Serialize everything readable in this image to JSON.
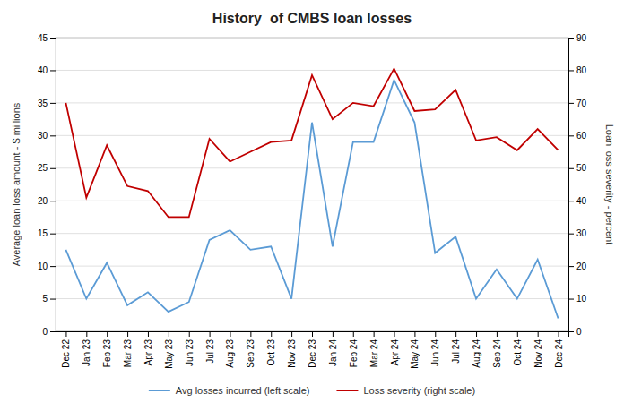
{
  "chart_data": {
    "type": "line",
    "title": "History  of CMBS loan losses",
    "ylabel": "Average loan loss amount - $ millions",
    "y2label": "Loan loss severity - percent",
    "categories": [
      "Dec 22",
      "Jan 23",
      "Feb 23",
      "Mar 23",
      "Apr 23",
      "May 23",
      "Jun 23",
      "Jul 23",
      "Aug 23",
      "Sep 23",
      "Oct 23",
      "Nov 23",
      "Dec 23",
      "Jan 24",
      "Feb 24",
      "Mar 24",
      "Apr 24",
      "May 24",
      "Jun 24",
      "Jul 24",
      "Aug 24",
      "Sep 24",
      "Oct 24",
      "Nov 24",
      "Dec 24"
    ],
    "series": [
      {
        "name": "Avg losses incurred (left scale)",
        "color": "#5b9bd5",
        "values": [
          12.5,
          5.0,
          10.5,
          4.0,
          6.0,
          3.0,
          4.5,
          14.0,
          15.5,
          12.5,
          13.0,
          5.0,
          32.0,
          13.0,
          29.0,
          29.0,
          38.5,
          32.0,
          12.0,
          14.5,
          5.0,
          9.5,
          5.0,
          11.0,
          2.0
        ]
      },
      {
        "name": "Loss severity (right scale)",
        "color": "#c00000",
        "axis": "y2",
        "values": [
          70.0,
          41.0,
          57.0,
          44.5,
          43.0,
          35.0,
          35.0,
          59.0,
          52.0,
          55.0,
          58.0,
          58.5,
          78.5,
          65.0,
          70.0,
          69.0,
          80.5,
          67.5,
          68.0,
          74.0,
          58.5,
          59.5,
          55.5,
          62.0,
          55.5
        ]
      }
    ],
    "ylim": [
      0,
      45
    ],
    "yticks": [
      0,
      5,
      10,
      15,
      20,
      25,
      30,
      35,
      40,
      45
    ],
    "y2lim": [
      0,
      90
    ],
    "y2ticks": [
      0,
      10,
      20,
      30,
      40,
      50,
      60,
      70,
      80,
      90
    ],
    "grid": true,
    "legend": "bottom"
  }
}
